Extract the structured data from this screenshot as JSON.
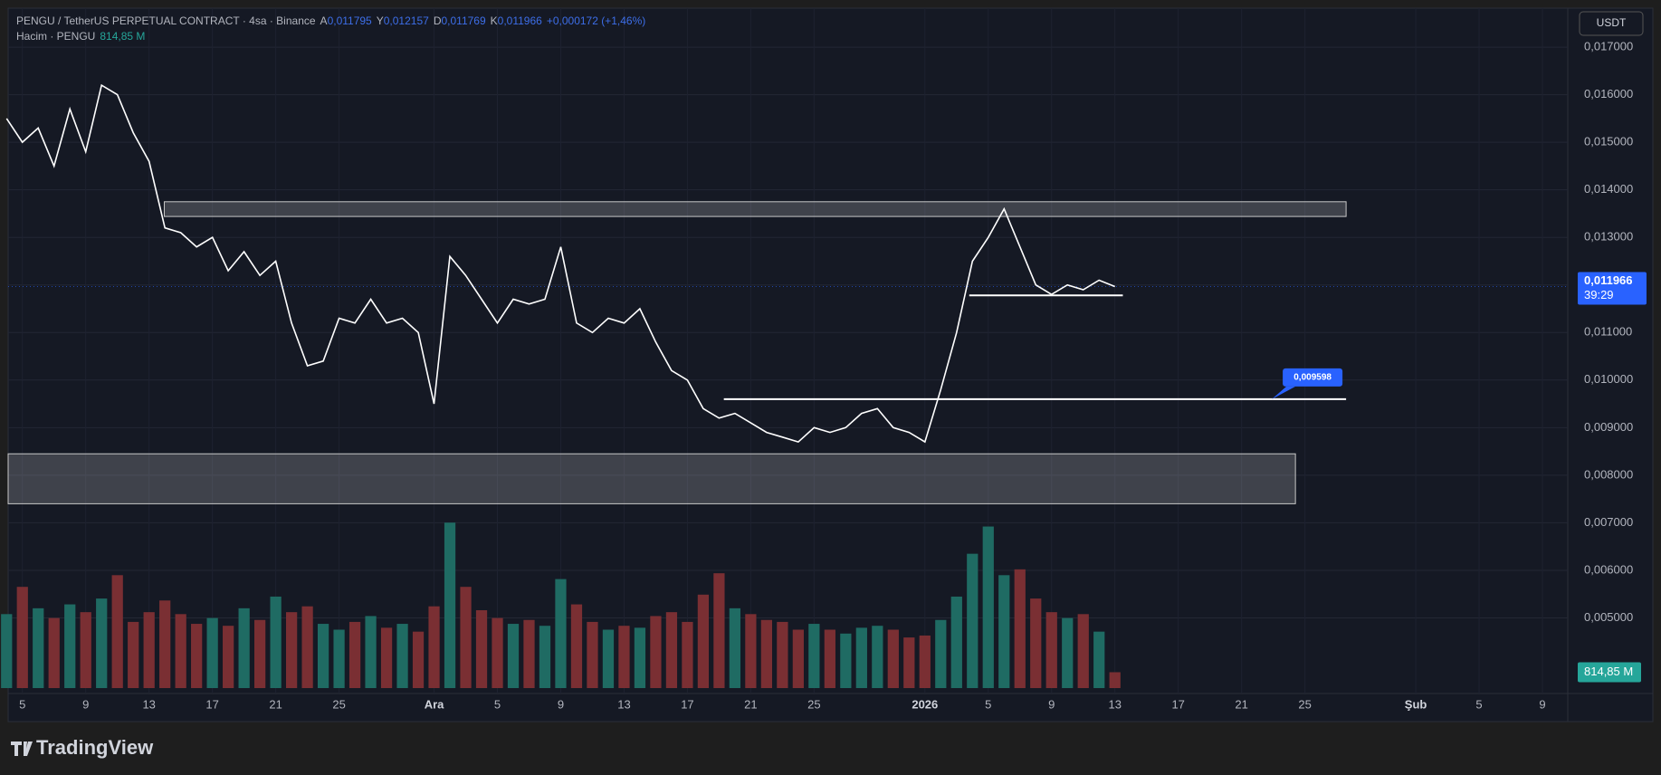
{
  "header": {
    "symbol": "PENGU / TetherUS PERPETUAL CONTRACT · 4sa · Binance",
    "o_key": "A",
    "o": "0,011795",
    "h_key": "Y",
    "h": "0,012157",
    "l_key": "D",
    "l": "0,011769",
    "c_key": "K",
    "c": "0,011966",
    "change": "+0,000172 (+1,46%)",
    "volume_title": "Hacim · PENGU",
    "volume_value": "814,85 M",
    "currency": "USDT",
    "brand": "TradingView"
  },
  "chart_data": {
    "type": "line",
    "x": [
      4,
      5,
      6,
      7,
      8,
      9,
      10,
      11,
      12,
      13,
      14,
      15,
      16,
      17,
      18,
      19,
      20,
      21,
      22,
      23,
      24,
      25,
      26,
      27,
      28,
      29,
      30,
      31,
      32,
      33,
      34,
      35,
      36,
      37,
      38,
      39,
      40,
      41,
      42,
      43,
      44,
      45,
      46,
      47,
      48,
      49,
      50,
      51,
      52,
      53,
      54,
      55,
      56,
      57,
      58,
      59,
      60,
      61,
      62,
      63,
      64,
      65,
      66,
      67,
      68,
      69,
      70,
      71,
      72,
      73,
      74
    ],
    "price": {
      "color": "#ffffff",
      "values": [
        0.0155,
        0.015,
        0.0153,
        0.0145,
        0.0157,
        0.0148,
        0.0162,
        0.016,
        0.0152,
        0.0146,
        0.0132,
        0.0131,
        0.0128,
        0.013,
        0.0123,
        0.0127,
        0.0122,
        0.0125,
        0.0112,
        0.0103,
        0.0104,
        0.0113,
        0.0112,
        0.0117,
        0.0112,
        0.0113,
        0.011,
        0.0095,
        0.0126,
        0.0122,
        0.0117,
        0.0112,
        0.0117,
        0.0116,
        0.0117,
        0.0128,
        0.0112,
        0.011,
        0.0113,
        0.0112,
        0.0115,
        0.0108,
        0.0102,
        0.01,
        0.0094,
        0.0092,
        0.0093,
        0.0091,
        0.0089,
        0.0088,
        0.0087,
        0.009,
        0.0089,
        0.009,
        0.0093,
        0.0094,
        0.009,
        0.0089,
        0.0087,
        0.0098,
        0.011,
        0.0125,
        0.013,
        0.0136,
        0.0128,
        0.012,
        0.0118,
        0.012,
        0.0119,
        0.0121,
        0.011966
      ]
    },
    "volume": {
      "up_color": "#1f6b63",
      "down_color": "#7a2f33",
      "values": [
        3800,
        5200,
        4100,
        3600,
        4300,
        3900,
        4600,
        5800,
        3400,
        3900,
        4500,
        3800,
        3300,
        3600,
        3200,
        4100,
        3500,
        4700,
        3900,
        4200,
        3300,
        3000,
        3400,
        3700,
        3100,
        3300,
        2900,
        4200,
        8500,
        5200,
        4000,
        3600,
        3300,
        3500,
        3200,
        5600,
        4300,
        3400,
        3000,
        3200,
        3100,
        3700,
        3900,
        3400,
        4800,
        5900,
        4100,
        3800,
        3500,
        3400,
        3000,
        3300,
        3000,
        2800,
        3100,
        3200,
        3000,
        2600,
        2700,
        3500,
        4700,
        6900,
        8300,
        5800,
        6100,
        4600,
        3900,
        3600,
        3800,
        2900,
        814.85
      ],
      "last_label": "814,85 M"
    },
    "xlim": [
      4.1,
      102.6
    ],
    "xticks": [
      {
        "value": 5,
        "label": "5"
      },
      {
        "value": 9,
        "label": "9"
      },
      {
        "value": 13,
        "label": "13"
      },
      {
        "value": 17,
        "label": "17"
      },
      {
        "value": 21,
        "label": "21"
      },
      {
        "value": 25,
        "label": "25"
      },
      {
        "value": 31,
        "label": "Ara"
      },
      {
        "value": 35,
        "label": "5"
      },
      {
        "value": 39,
        "label": "9"
      },
      {
        "value": 43,
        "label": "13"
      },
      {
        "value": 47,
        "label": "17"
      },
      {
        "value": 51,
        "label": "21"
      },
      {
        "value": 55,
        "label": "25"
      },
      {
        "value": 62,
        "label": "2026"
      },
      {
        "value": 66,
        "label": "5"
      },
      {
        "value": 70,
        "label": "9"
      },
      {
        "value": 74,
        "label": "13"
      },
      {
        "value": 78,
        "label": "17"
      },
      {
        "value": 82,
        "label": "21"
      },
      {
        "value": 86,
        "label": "25"
      },
      {
        "value": 93,
        "label": "Şub"
      },
      {
        "value": 97,
        "label": "5"
      },
      {
        "value": 101,
        "label": "9"
      }
    ],
    "ylim": [
      0.00341,
      0.01782
    ],
    "yticks": [
      {
        "value": 0.005,
        "label": "0,005000"
      },
      {
        "value": 0.006,
        "label": "0,006000"
      },
      {
        "value": 0.007,
        "label": "0,007000"
      },
      {
        "value": 0.008,
        "label": "0,008000"
      },
      {
        "value": 0.009,
        "label": "0,009000"
      },
      {
        "value": 0.01,
        "label": "0,010000"
      },
      {
        "value": 0.011,
        "label": "0,011000"
      },
      {
        "value": 0.012,
        "label": "0,012000"
      },
      {
        "value": 0.013,
        "label": "0,013000"
      },
      {
        "value": 0.014,
        "label": "0,014000"
      },
      {
        "value": 0.015,
        "label": "0,015000"
      },
      {
        "value": 0.016,
        "label": "0,016000"
      },
      {
        "value": 0.017,
        "label": "0,017000"
      }
    ],
    "vlim": [
      0,
      12000
    ],
    "grid": true,
    "zones": [
      {
        "y": [
          0.01344,
          0.01375
        ],
        "x": [
          13.96,
          88.6
        ]
      },
      {
        "y": [
          0.0074,
          0.00845
        ],
        "x": [
          4.1,
          85.4
        ]
      }
    ],
    "levels": [
      {
        "value": 0.01178,
        "x": [
          64.8,
          74.5
        ]
      },
      {
        "value": 0.009598,
        "x": [
          49.3,
          88.6
        ],
        "label": "0,009598"
      }
    ],
    "last_price": {
      "value": 0.011966,
      "label": "0,011966"
    },
    "countdown": "39:29"
  }
}
